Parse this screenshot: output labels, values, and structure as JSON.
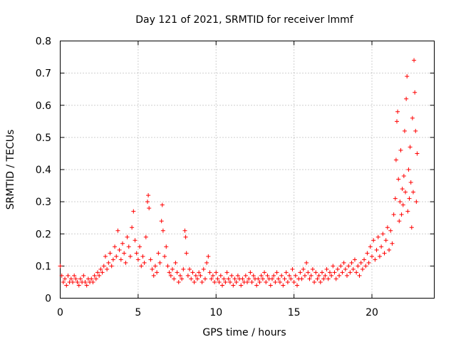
{
  "chart_data": {
    "type": "scatter",
    "title": "Day 121 of 2021, SRMTID for receiver lmmf",
    "xlabel": "GPS time / hours",
    "ylabel": "SRMTID / TECUs",
    "xlim": [
      0,
      24
    ],
    "ylim": [
      0,
      0.8
    ],
    "xticks": [
      0,
      5,
      10,
      15,
      20
    ],
    "xtick_labels": [
      "0",
      "5",
      "10",
      "15",
      "20"
    ],
    "yticks": [
      0,
      0.1,
      0.2,
      0.3,
      0.4,
      0.5,
      0.6,
      0.7,
      0.8
    ],
    "ytick_labels": [
      "0",
      "0.1",
      "0.2",
      "0.3",
      "0.4",
      "0.5",
      "0.6",
      "0.7",
      "0.8"
    ],
    "grid": true,
    "marker": "plus",
    "color": "#ff0000",
    "series": [
      {
        "name": "SRMTID",
        "points": [
          [
            0.0,
            0.1
          ],
          [
            0.1,
            0.07
          ],
          [
            0.2,
            0.05
          ],
          [
            0.3,
            0.06
          ],
          [
            0.4,
            0.04
          ],
          [
            0.5,
            0.07
          ],
          [
            0.6,
            0.05
          ],
          [
            0.7,
            0.06
          ],
          [
            0.8,
            0.05
          ],
          [
            0.9,
            0.07
          ],
          [
            1.0,
            0.06
          ],
          [
            1.1,
            0.05
          ],
          [
            1.2,
            0.04
          ],
          [
            1.3,
            0.06
          ],
          [
            1.4,
            0.05
          ],
          [
            1.5,
            0.07
          ],
          [
            1.6,
            0.05
          ],
          [
            1.7,
            0.04
          ],
          [
            1.8,
            0.06
          ],
          [
            1.9,
            0.05
          ],
          [
            2.0,
            0.06
          ],
          [
            2.1,
            0.05
          ],
          [
            2.2,
            0.07
          ],
          [
            2.3,
            0.06
          ],
          [
            2.4,
            0.08
          ],
          [
            2.5,
            0.07
          ],
          [
            2.6,
            0.09
          ],
          [
            2.7,
            0.08
          ],
          [
            2.8,
            0.1
          ],
          [
            2.9,
            0.13
          ],
          [
            3.0,
            0.09
          ],
          [
            3.1,
            0.11
          ],
          [
            3.2,
            0.14
          ],
          [
            3.3,
            0.1
          ],
          [
            3.4,
            0.12
          ],
          [
            3.5,
            0.16
          ],
          [
            3.6,
            0.13
          ],
          [
            3.7,
            0.21
          ],
          [
            3.8,
            0.15
          ],
          [
            3.9,
            0.12
          ],
          [
            4.0,
            0.17
          ],
          [
            4.1,
            0.14
          ],
          [
            4.2,
            0.11
          ],
          [
            4.3,
            0.19
          ],
          [
            4.4,
            0.16
          ],
          [
            4.5,
            0.13
          ],
          [
            4.6,
            0.22
          ],
          [
            4.7,
            0.27
          ],
          [
            4.8,
            0.18
          ],
          [
            4.9,
            0.14
          ],
          [
            5.0,
            0.12
          ],
          [
            5.1,
            0.16
          ],
          [
            5.2,
            0.1
          ],
          [
            5.3,
            0.13
          ],
          [
            5.4,
            0.11
          ],
          [
            5.5,
            0.19
          ],
          [
            5.6,
            0.3
          ],
          [
            5.65,
            0.32
          ],
          [
            5.7,
            0.28
          ],
          [
            5.8,
            0.12
          ],
          [
            5.9,
            0.09
          ],
          [
            6.0,
            0.07
          ],
          [
            6.1,
            0.1
          ],
          [
            6.2,
            0.08
          ],
          [
            6.3,
            0.14
          ],
          [
            6.4,
            0.11
          ],
          [
            6.5,
            0.24
          ],
          [
            6.55,
            0.29
          ],
          [
            6.6,
            0.21
          ],
          [
            6.7,
            0.13
          ],
          [
            6.8,
            0.16
          ],
          [
            6.9,
            0.1
          ],
          [
            7.0,
            0.08
          ],
          [
            7.1,
            0.07
          ],
          [
            7.2,
            0.09
          ],
          [
            7.3,
            0.06
          ],
          [
            7.4,
            0.11
          ],
          [
            7.5,
            0.08
          ],
          [
            7.6,
            0.05
          ],
          [
            7.7,
            0.07
          ],
          [
            7.8,
            0.06
          ],
          [
            7.9,
            0.09
          ],
          [
            8.0,
            0.21
          ],
          [
            8.05,
            0.19
          ],
          [
            8.1,
            0.14
          ],
          [
            8.2,
            0.07
          ],
          [
            8.3,
            0.09
          ],
          [
            8.4,
            0.06
          ],
          [
            8.5,
            0.08
          ],
          [
            8.6,
            0.05
          ],
          [
            8.7,
            0.07
          ],
          [
            8.8,
            0.06
          ],
          [
            8.9,
            0.08
          ],
          [
            9.0,
            0.07
          ],
          [
            9.1,
            0.05
          ],
          [
            9.2,
            0.09
          ],
          [
            9.3,
            0.06
          ],
          [
            9.4,
            0.11
          ],
          [
            9.5,
            0.13
          ],
          [
            9.6,
            0.08
          ],
          [
            9.7,
            0.06
          ],
          [
            9.8,
            0.07
          ],
          [
            9.9,
            0.05
          ],
          [
            10.0,
            0.08
          ],
          [
            10.1,
            0.06
          ],
          [
            10.2,
            0.05
          ],
          [
            10.3,
            0.07
          ],
          [
            10.4,
            0.04
          ],
          [
            10.5,
            0.06
          ],
          [
            10.6,
            0.05
          ],
          [
            10.7,
            0.08
          ],
          [
            10.8,
            0.06
          ],
          [
            10.9,
            0.05
          ],
          [
            11.0,
            0.07
          ],
          [
            11.1,
            0.04
          ],
          [
            11.2,
            0.06
          ],
          [
            11.3,
            0.05
          ],
          [
            11.4,
            0.07
          ],
          [
            11.5,
            0.06
          ],
          [
            11.6,
            0.04
          ],
          [
            11.7,
            0.06
          ],
          [
            11.8,
            0.05
          ],
          [
            11.9,
            0.07
          ],
          [
            12.0,
            0.05
          ],
          [
            12.1,
            0.06
          ],
          [
            12.2,
            0.08
          ],
          [
            12.3,
            0.05
          ],
          [
            12.4,
            0.07
          ],
          [
            12.5,
            0.06
          ],
          [
            12.6,
            0.04
          ],
          [
            12.7,
            0.06
          ],
          [
            12.8,
            0.05
          ],
          [
            12.9,
            0.07
          ],
          [
            13.0,
            0.06
          ],
          [
            13.1,
            0.08
          ],
          [
            13.2,
            0.05
          ],
          [
            13.3,
            0.07
          ],
          [
            13.4,
            0.06
          ],
          [
            13.5,
            0.04
          ],
          [
            13.6,
            0.06
          ],
          [
            13.7,
            0.07
          ],
          [
            13.8,
            0.05
          ],
          [
            13.9,
            0.08
          ],
          [
            14.0,
            0.06
          ],
          [
            14.1,
            0.05
          ],
          [
            14.2,
            0.07
          ],
          [
            14.3,
            0.04
          ],
          [
            14.4,
            0.06
          ],
          [
            14.5,
            0.08
          ],
          [
            14.6,
            0.05
          ],
          [
            14.7,
            0.07
          ],
          [
            14.8,
            0.06
          ],
          [
            14.9,
            0.09
          ],
          [
            15.0,
            0.05
          ],
          [
            15.1,
            0.07
          ],
          [
            15.2,
            0.04
          ],
          [
            15.3,
            0.06
          ],
          [
            15.4,
            0.08
          ],
          [
            15.5,
            0.06
          ],
          [
            15.6,
            0.09
          ],
          [
            15.7,
            0.07
          ],
          [
            15.8,
            0.11
          ],
          [
            15.9,
            0.08
          ],
          [
            16.0,
            0.06
          ],
          [
            16.1,
            0.07
          ],
          [
            16.2,
            0.09
          ],
          [
            16.3,
            0.05
          ],
          [
            16.4,
            0.08
          ],
          [
            16.5,
            0.06
          ],
          [
            16.6,
            0.07
          ],
          [
            16.7,
            0.05
          ],
          [
            16.8,
            0.08
          ],
          [
            16.9,
            0.06
          ],
          [
            17.0,
            0.07
          ],
          [
            17.1,
            0.09
          ],
          [
            17.2,
            0.06
          ],
          [
            17.3,
            0.08
          ],
          [
            17.4,
            0.07
          ],
          [
            17.5,
            0.1
          ],
          [
            17.6,
            0.08
          ],
          [
            17.7,
            0.06
          ],
          [
            17.8,
            0.09
          ],
          [
            17.9,
            0.07
          ],
          [
            18.0,
            0.1
          ],
          [
            18.1,
            0.08
          ],
          [
            18.2,
            0.11
          ],
          [
            18.3,
            0.09
          ],
          [
            18.4,
            0.07
          ],
          [
            18.5,
            0.1
          ],
          [
            18.6,
            0.08
          ],
          [
            18.7,
            0.11
          ],
          [
            18.8,
            0.09
          ],
          [
            18.9,
            0.12
          ],
          [
            19.0,
            0.08
          ],
          [
            19.1,
            0.1
          ],
          [
            19.2,
            0.07
          ],
          [
            19.3,
            0.11
          ],
          [
            19.4,
            0.09
          ],
          [
            19.5,
            0.12
          ],
          [
            19.6,
            0.1
          ],
          [
            19.7,
            0.14
          ],
          [
            19.8,
            0.11
          ],
          [
            19.9,
            0.16
          ],
          [
            20.0,
            0.13
          ],
          [
            20.1,
            0.18
          ],
          [
            20.2,
            0.12
          ],
          [
            20.3,
            0.15
          ],
          [
            20.4,
            0.19
          ],
          [
            20.5,
            0.13
          ],
          [
            20.6,
            0.16
          ],
          [
            20.7,
            0.2
          ],
          [
            20.8,
            0.14
          ],
          [
            20.9,
            0.18
          ],
          [
            21.0,
            0.22
          ],
          [
            21.1,
            0.15
          ],
          [
            21.2,
            0.21
          ],
          [
            21.3,
            0.17
          ],
          [
            21.4,
            0.26
          ],
          [
            21.5,
            0.31
          ],
          [
            21.55,
            0.43
          ],
          [
            21.6,
            0.55
          ],
          [
            21.65,
            0.58
          ],
          [
            21.7,
            0.37
          ],
          [
            21.75,
            0.24
          ],
          [
            21.8,
            0.3
          ],
          [
            21.85,
            0.46
          ],
          [
            21.9,
            0.26
          ],
          [
            21.95,
            0.34
          ],
          [
            22.0,
            0.29
          ],
          [
            22.05,
            0.38
          ],
          [
            22.1,
            0.52
          ],
          [
            22.15,
            0.33
          ],
          [
            22.2,
            0.62
          ],
          [
            22.25,
            0.69
          ],
          [
            22.3,
            0.27
          ],
          [
            22.35,
            0.4
          ],
          [
            22.4,
            0.31
          ],
          [
            22.45,
            0.47
          ],
          [
            22.5,
            0.36
          ],
          [
            22.55,
            0.22
          ],
          [
            22.6,
            0.56
          ],
          [
            22.65,
            0.33
          ],
          [
            22.7,
            0.74
          ],
          [
            22.75,
            0.64
          ],
          [
            22.8,
            0.52
          ],
          [
            22.85,
            0.3
          ],
          [
            22.9,
            0.45
          ]
        ]
      }
    ]
  }
}
